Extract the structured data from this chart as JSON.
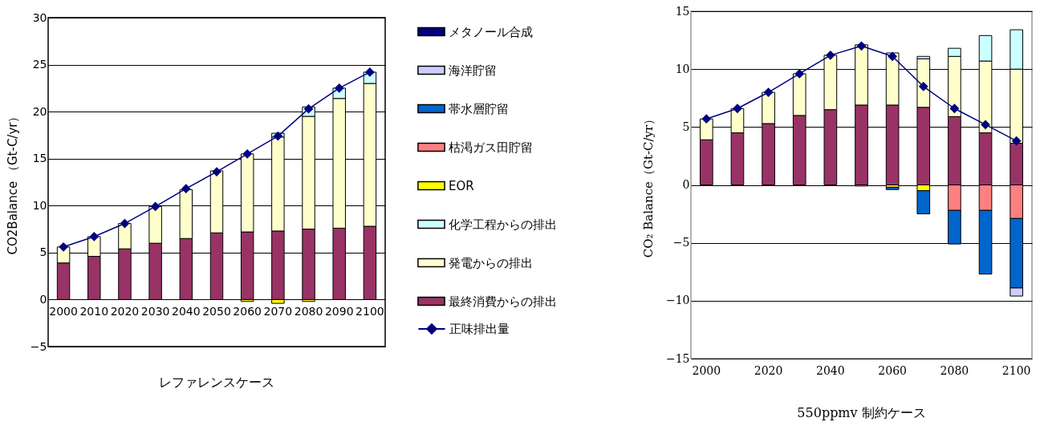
{
  "chart_data": [
    {
      "type": "bar",
      "stacked": true,
      "title": "レファレンスケース",
      "ylabel": "CO2Balance （Gt-C/yr）",
      "categories": [
        "2000",
        "2010",
        "2020",
        "2030",
        "2040",
        "2050",
        "2060",
        "2070",
        "2080",
        "2090",
        "2100"
      ],
      "ylim": [
        -5,
        30
      ],
      "yticks": [
        -5,
        0,
        5,
        10,
        15,
        20,
        25,
        30
      ],
      "grid": "y",
      "legend": "right",
      "series": [
        {
          "name": "最終消費からの排出",
          "color": "#993366",
          "values": [
            3.9,
            4.6,
            5.4,
            6.0,
            6.5,
            7.1,
            7.2,
            7.3,
            7.5,
            7.6,
            7.8
          ]
        },
        {
          "name": "発電からの排出",
          "color": "#ffffcc",
          "values": [
            1.7,
            2.1,
            2.7,
            3.9,
            5.2,
            6.6,
            8.3,
            10.0,
            12.0,
            13.8,
            15.2
          ]
        },
        {
          "name": "化学工程からの排出",
          "color": "#ccffff",
          "values": [
            null,
            null,
            null,
            null,
            null,
            null,
            null,
            0.4,
            1.0,
            1.1,
            1.2
          ]
        },
        {
          "name": "EOR",
          "color": "#ffff00",
          "values": [
            null,
            null,
            null,
            null,
            null,
            null,
            -0.2,
            -0.4,
            -0.2,
            null,
            null
          ]
        },
        {
          "name": "枯渇ガス田貯留",
          "color": "#ff8080",
          "values": [
            null,
            null,
            null,
            null,
            null,
            null,
            null,
            null,
            null,
            null,
            null
          ]
        },
        {
          "name": "帯水層貯留",
          "color": "#0066cc",
          "values": [
            null,
            null,
            null,
            null,
            null,
            null,
            null,
            null,
            null,
            null,
            null
          ]
        },
        {
          "name": "海洋貯留",
          "color": "#ccccff",
          "values": [
            null,
            null,
            null,
            null,
            null,
            null,
            null,
            null,
            null,
            null,
            null
          ]
        },
        {
          "name": "メタノール合成",
          "color": "#000080",
          "values": [
            null,
            null,
            null,
            null,
            null,
            null,
            null,
            null,
            null,
            null,
            null
          ]
        },
        {
          "name": "正味排出量",
          "type": "line",
          "color": "#000080",
          "marker": "diamond",
          "values": [
            5.6,
            6.7,
            8.1,
            9.9,
            11.8,
            13.6,
            15.5,
            17.4,
            20.3,
            22.5,
            24.2
          ]
        }
      ]
    },
    {
      "type": "bar",
      "stacked": true,
      "title": "550ppmv 制約ケース",
      "ylabel": "CO₂ Balance（Gt-C/yr）",
      "categories": [
        "2000",
        null,
        "2020",
        null,
        "2040",
        null,
        "2060",
        null,
        "2080",
        null,
        "2100"
      ],
      "ylim": [
        -15,
        15
      ],
      "yticks": [
        -15,
        -10,
        -5,
        0,
        5,
        10,
        15
      ],
      "grid": "y",
      "series": [
        {
          "color": "#993366",
          "values": [
            3.9,
            4.5,
            5.3,
            6.0,
            6.5,
            6.9,
            6.9,
            6.7,
            5.9,
            4.5,
            3.6
          ]
        },
        {
          "color": "#ffffcc",
          "values": [
            1.8,
            2.1,
            2.7,
            3.6,
            4.7,
            5.2,
            4.5,
            4.2,
            5.2,
            6.2,
            6.4
          ]
        },
        {
          "color": "#ccffff",
          "values": [
            null,
            null,
            null,
            null,
            null,
            null,
            null,
            0.2,
            0.7,
            2.2,
            3.4
          ]
        },
        {
          "color": "#ffff00",
          "values": [
            null,
            null,
            null,
            null,
            null,
            -0.1,
            -0.2,
            -0.5,
            null,
            null,
            null
          ]
        },
        {
          "color": "#ff8080",
          "values": [
            null,
            null,
            null,
            null,
            null,
            null,
            null,
            null,
            -2.2,
            -2.2,
            -2.9
          ]
        },
        {
          "color": "#0066cc",
          "values": [
            null,
            null,
            null,
            null,
            null,
            null,
            -0.2,
            -2.0,
            -2.9,
            -5.5,
            -6.0
          ]
        },
        {
          "color": "#ccccff",
          "values": [
            null,
            null,
            null,
            null,
            null,
            null,
            null,
            null,
            null,
            null,
            -0.7
          ]
        },
        {
          "type": "line",
          "color": "#000080",
          "marker": "diamond",
          "values": [
            5.7,
            6.6,
            8.0,
            9.6,
            11.2,
            12.0,
            11.1,
            8.5,
            6.6,
            5.2,
            3.8
          ]
        }
      ]
    }
  ]
}
